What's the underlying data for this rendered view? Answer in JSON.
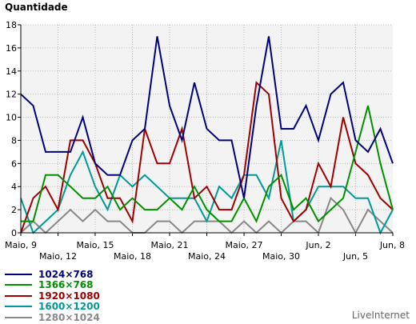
{
  "chart_data": {
    "type": "line",
    "ylabel": "Quantidade",
    "ylim": [
      0,
      18
    ],
    "yticks": [
      0,
      2,
      4,
      6,
      8,
      10,
      12,
      14,
      16,
      18
    ],
    "grid": true,
    "legend_position": "bottom-left",
    "x_tick_labels_row1": [
      "Maio, 9",
      "Maio, 15",
      "Maio, 21",
      "Maio, 27",
      "Jun, 2",
      "Jun, 8"
    ],
    "x_tick_labels_row2": [
      "Maio, 12",
      "Maio, 18",
      "Maio, 24",
      "Maio, 30",
      "Jun, 5"
    ],
    "series": [
      {
        "name": "1024×768",
        "color": "#00007f",
        "values": [
          12,
          11,
          7,
          7,
          7,
          10,
          6,
          5,
          5,
          8,
          9,
          17,
          11,
          8,
          13,
          9,
          8,
          8,
          3,
          11,
          17,
          9,
          9,
          11,
          8,
          12,
          13,
          8,
          7,
          9,
          6
        ]
      },
      {
        "name": "1366×768",
        "color": "#009000",
        "values": [
          1,
          1,
          5,
          5,
          4,
          3,
          3,
          4,
          2,
          3,
          2,
          2,
          3,
          2,
          4,
          2,
          1,
          1,
          3,
          1,
          4,
          5,
          2,
          3,
          1,
          2,
          3,
          7,
          11,
          6,
          2
        ]
      },
      {
        "name": "1920×1080",
        "color": "#a00000",
        "values": [
          0,
          3,
          4,
          2,
          8,
          8,
          6,
          3,
          3,
          1,
          9,
          6,
          6,
          9,
          3,
          4,
          2,
          2,
          5,
          13,
          12,
          3,
          1,
          2,
          6,
          4,
          10,
          6,
          5,
          3,
          2
        ]
      },
      {
        "name": "1600×1200",
        "color": "#009999",
        "values": [
          3,
          0,
          1,
          2,
          5,
          7,
          4,
          2,
          5,
          4,
          5,
          4,
          3,
          3,
          3,
          1,
          4,
          3,
          5,
          5,
          3,
          8,
          1,
          2,
          4,
          4,
          4,
          3,
          3,
          0,
          2
        ]
      },
      {
        "name": "1280×1024",
        "color": "#888888",
        "values": [
          0,
          1,
          0,
          1,
          2,
          1,
          2,
          1,
          1,
          0,
          0,
          1,
          1,
          0,
          1,
          1,
          1,
          0,
          1,
          0,
          1,
          0,
          1,
          1,
          0,
          3,
          2,
          0,
          2,
          1,
          0
        ]
      }
    ]
  },
  "credit": "LiveInternet"
}
